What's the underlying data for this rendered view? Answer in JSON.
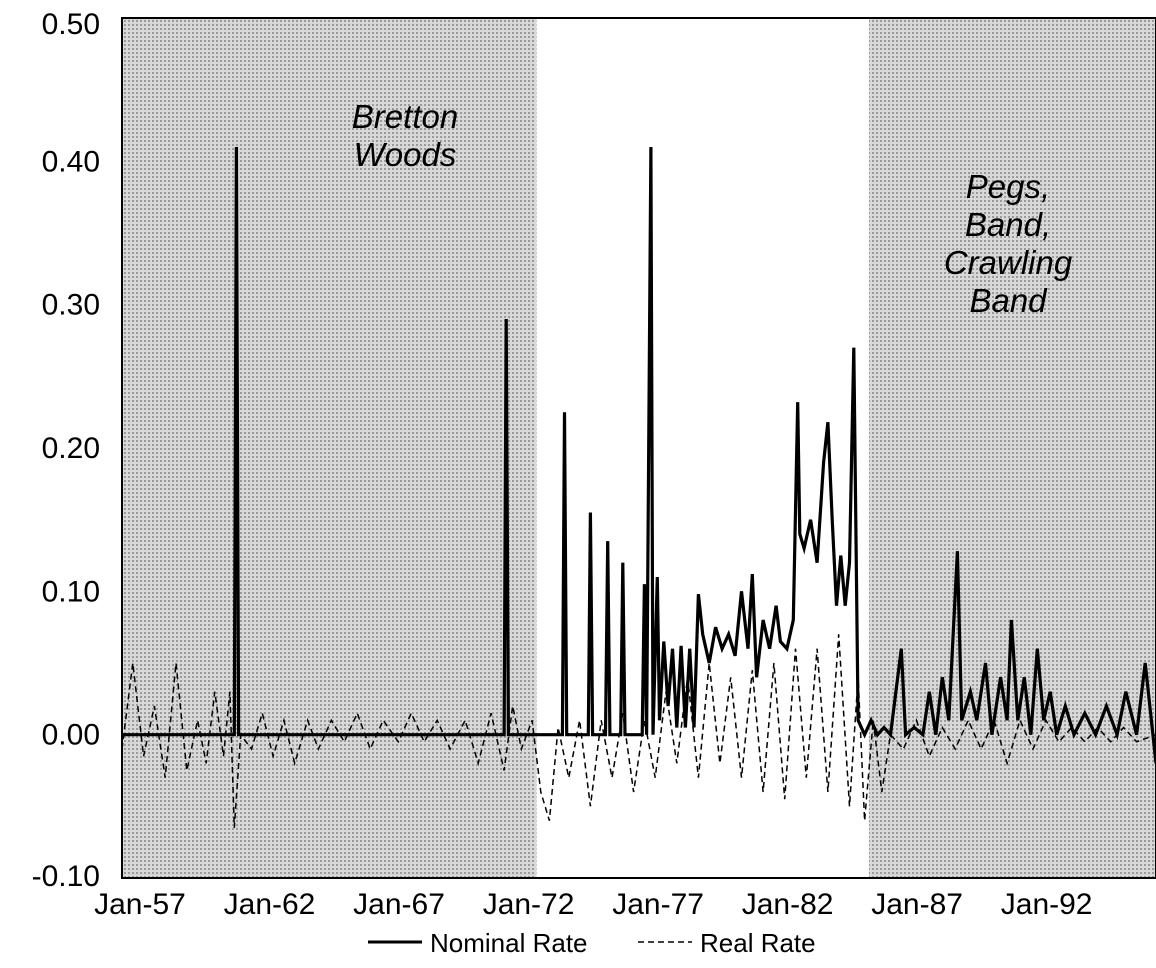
{
  "chart_data": {
    "type": "line",
    "title": "",
    "xlabel": "",
    "ylabel": "",
    "x_range": [
      "Jan-57",
      "Dec-96"
    ],
    "ylim": [
      -0.1,
      0.5
    ],
    "y_ticks": [
      "0.50",
      "0.40",
      "0.30",
      "0.20",
      "0.10",
      "0.00",
      "-0.10"
    ],
    "y_tick_values": [
      0.5,
      0.4,
      0.3,
      0.2,
      0.1,
      0.0,
      -0.1
    ],
    "x_ticks": [
      "Jan-57",
      "Jan-62",
      "Jan-67",
      "Jan-72",
      "Jan-77",
      "Jan-82",
      "Jan-87",
      "Jan-92"
    ],
    "x_tick_years": [
      1957,
      1962,
      1967,
      1972,
      1977,
      1982,
      1987,
      1992
    ],
    "grid": false,
    "legend_position": "bottom-center",
    "shaded_color": "#c8c8c8",
    "regimes": [
      {
        "label": [
          "Bretton",
          "Woods"
        ],
        "start": "Jan-57",
        "end": "Dec-72",
        "shaded": true
      },
      {
        "label": [],
        "start": "Jan-73",
        "end": "Oct-85",
        "shaded": false
      },
      {
        "label": [
          "Pegs,",
          "Band,",
          "Crawling",
          "Band"
        ],
        "start": "Nov-85",
        "end": "Dec-96",
        "shaded": true
      }
    ],
    "series": [
      {
        "name": "Nominal Rate",
        "style": "solid",
        "color": "#000000",
        "points": [
          [
            "1957-01",
            0.0
          ],
          [
            "1961-05",
            0.0
          ],
          [
            "1961-06",
            0.41
          ],
          [
            "1961-07",
            0.0
          ],
          [
            "1971-10",
            0.0
          ],
          [
            "1971-11",
            0.29
          ],
          [
            "1971-12",
            0.0
          ],
          [
            "1974-01",
            0.0
          ],
          [
            "1974-02",
            0.225
          ],
          [
            "1974-03",
            0.0
          ],
          [
            "1975-01",
            0.0
          ],
          [
            "1975-02",
            0.155
          ],
          [
            "1975-03",
            0.0
          ],
          [
            "1975-09",
            0.0
          ],
          [
            "1975-10",
            0.135
          ],
          [
            "1975-11",
            0.0
          ],
          [
            "1976-04",
            0.0
          ],
          [
            "1976-05",
            0.12
          ],
          [
            "1976-06",
            0.0
          ],
          [
            "1977-02",
            0.0
          ],
          [
            "1977-03",
            0.105
          ],
          [
            "1977-04",
            0.0
          ],
          [
            "1977-06",
            0.41
          ],
          [
            "1977-07",
            0.0
          ],
          [
            "1977-09",
            0.11
          ],
          [
            "1977-10",
            0.01
          ],
          [
            "1977-12",
            0.065
          ],
          [
            "1978-02",
            0.02
          ],
          [
            "1978-04",
            0.06
          ],
          [
            "1978-06",
            0.005
          ],
          [
            "1978-08",
            0.062
          ],
          [
            "1978-10",
            0.005
          ],
          [
            "1978-12",
            0.06
          ],
          [
            "1979-02",
            0.005
          ],
          [
            "1979-04",
            0.098
          ],
          [
            "1979-06",
            0.07
          ],
          [
            "1979-09",
            0.05
          ],
          [
            "1979-12",
            0.075
          ],
          [
            "1980-03",
            0.06
          ],
          [
            "1980-06",
            0.07
          ],
          [
            "1980-09",
            0.055
          ],
          [
            "1980-12",
            0.1
          ],
          [
            "1981-03",
            0.06
          ],
          [
            "1981-05",
            0.112
          ],
          [
            "1981-07",
            0.04
          ],
          [
            "1981-10",
            0.08
          ],
          [
            "1982-01",
            0.06
          ],
          [
            "1982-04",
            0.09
          ],
          [
            "1982-06",
            0.065
          ],
          [
            "1982-09",
            0.06
          ],
          [
            "1982-12",
            0.08
          ],
          [
            "1983-02",
            0.232
          ],
          [
            "1983-03",
            0.14
          ],
          [
            "1983-05",
            0.13
          ],
          [
            "1983-08",
            0.15
          ],
          [
            "1983-11",
            0.12
          ],
          [
            "1984-02",
            0.19
          ],
          [
            "1984-04",
            0.218
          ],
          [
            "1984-06",
            0.15
          ],
          [
            "1984-08",
            0.09
          ],
          [
            "1984-10",
            0.125
          ],
          [
            "1984-12",
            0.09
          ],
          [
            "1985-02",
            0.12
          ],
          [
            "1985-04",
            0.27
          ],
          [
            "1985-06",
            0.01
          ],
          [
            "1985-09",
            0.0
          ],
          [
            "1985-12",
            0.01
          ],
          [
            "1986-03",
            0.0
          ],
          [
            "1986-06",
            0.005
          ],
          [
            "1986-09",
            0.0
          ],
          [
            "1987-02",
            0.06
          ],
          [
            "1987-04",
            0.0
          ],
          [
            "1987-08",
            0.005
          ],
          [
            "1987-12",
            0.0
          ],
          [
            "1988-03",
            0.03
          ],
          [
            "1988-06",
            0.0
          ],
          [
            "1988-09",
            0.04
          ],
          [
            "1988-12",
            0.01
          ],
          [
            "1989-04",
            0.128
          ],
          [
            "1989-06",
            0.01
          ],
          [
            "1989-10",
            0.03
          ],
          [
            "1990-01",
            0.01
          ],
          [
            "1990-05",
            0.05
          ],
          [
            "1990-08",
            0.0
          ],
          [
            "1990-12",
            0.04
          ],
          [
            "1991-03",
            0.01
          ],
          [
            "1991-05",
            0.08
          ],
          [
            "1991-08",
            0.01
          ],
          [
            "1991-11",
            0.04
          ],
          [
            "1992-02",
            0.0
          ],
          [
            "1992-05",
            0.06
          ],
          [
            "1992-08",
            0.01
          ],
          [
            "1992-11",
            0.03
          ],
          [
            "1993-02",
            0.0
          ],
          [
            "1993-06",
            0.02
          ],
          [
            "1993-10",
            0.0
          ],
          [
            "1994-03",
            0.015
          ],
          [
            "1994-08",
            0.0
          ],
          [
            "1995-01",
            0.02
          ],
          [
            "1995-06",
            0.0
          ],
          [
            "1995-10",
            0.03
          ],
          [
            "1996-03",
            0.0
          ],
          [
            "1996-07",
            0.05
          ],
          [
            "1996-12",
            -0.02
          ]
        ]
      },
      {
        "name": "Real Rate",
        "style": "dashed",
        "color": "#000000",
        "points": [
          [
            "1957-01",
            -0.01
          ],
          [
            "1957-06",
            0.05
          ],
          [
            "1957-11",
            -0.015
          ],
          [
            "1958-04",
            0.02
          ],
          [
            "1958-09",
            -0.03
          ],
          [
            "1959-02",
            0.05
          ],
          [
            "1959-07",
            -0.025
          ],
          [
            "1959-12",
            0.01
          ],
          [
            "1960-04",
            -0.02
          ],
          [
            "1960-08",
            0.03
          ],
          [
            "1960-12",
            -0.015
          ],
          [
            "1961-03",
            0.03
          ],
          [
            "1961-05",
            -0.065
          ],
          [
            "1961-08",
            0.0
          ],
          [
            "1962-01",
            -0.01
          ],
          [
            "1962-06",
            0.015
          ],
          [
            "1962-11",
            -0.015
          ],
          [
            "1963-04",
            0.01
          ],
          [
            "1963-09",
            -0.02
          ],
          [
            "1964-03",
            0.01
          ],
          [
            "1964-08",
            -0.01
          ],
          [
            "1965-02",
            0.01
          ],
          [
            "1965-08",
            -0.005
          ],
          [
            "1966-02",
            0.015
          ],
          [
            "1966-08",
            -0.01
          ],
          [
            "1967-02",
            0.01
          ],
          [
            "1967-09",
            -0.005
          ],
          [
            "1968-03",
            0.015
          ],
          [
            "1968-09",
            -0.005
          ],
          [
            "1969-03",
            0.01
          ],
          [
            "1969-09",
            -0.01
          ],
          [
            "1970-04",
            0.01
          ],
          [
            "1970-10",
            -0.02
          ],
          [
            "1971-04",
            0.015
          ],
          [
            "1971-10",
            -0.025
          ],
          [
            "1972-02",
            0.02
          ],
          [
            "1972-06",
            -0.01
          ],
          [
            "1972-11",
            0.01
          ],
          [
            "1973-03",
            -0.04
          ],
          [
            "1973-07",
            -0.06
          ],
          [
            "1973-11",
            0.005
          ],
          [
            "1974-04",
            -0.03
          ],
          [
            "1974-09",
            0.01
          ],
          [
            "1975-02",
            -0.05
          ],
          [
            "1975-07",
            0.01
          ],
          [
            "1975-12",
            -0.03
          ],
          [
            "1976-05",
            0.015
          ],
          [
            "1976-10",
            -0.04
          ],
          [
            "1977-03",
            0.01
          ],
          [
            "1977-08",
            -0.03
          ],
          [
            "1978-01",
            0.03
          ],
          [
            "1978-06",
            -0.02
          ],
          [
            "1978-11",
            0.04
          ],
          [
            "1979-04",
            -0.03
          ],
          [
            "1979-09",
            0.05
          ],
          [
            "1980-02",
            -0.02
          ],
          [
            "1980-07",
            0.04
          ],
          [
            "1980-12",
            -0.03
          ],
          [
            "1981-05",
            0.045
          ],
          [
            "1981-10",
            -0.04
          ],
          [
            "1982-03",
            0.05
          ],
          [
            "1982-08",
            -0.045
          ],
          [
            "1983-01",
            0.06
          ],
          [
            "1983-06",
            -0.03
          ],
          [
            "1983-11",
            0.06
          ],
          [
            "1984-04",
            -0.04
          ],
          [
            "1984-09",
            0.07
          ],
          [
            "1985-02",
            -0.05
          ],
          [
            "1985-06",
            0.04
          ],
          [
            "1985-09",
            -0.06
          ],
          [
            "1986-01",
            0.01
          ],
          [
            "1986-05",
            -0.04
          ],
          [
            "1986-09",
            0.0
          ],
          [
            "1987-03",
            -0.01
          ],
          [
            "1987-09",
            0.01
          ],
          [
            "1988-03",
            -0.015
          ],
          [
            "1988-09",
            0.005
          ],
          [
            "1989-03",
            -0.01
          ],
          [
            "1989-09",
            0.01
          ],
          [
            "1990-03",
            -0.01
          ],
          [
            "1990-09",
            0.01
          ],
          [
            "1991-03",
            -0.02
          ],
          [
            "1991-09",
            0.01
          ],
          [
            "1992-03",
            -0.01
          ],
          [
            "1992-09",
            0.01
          ],
          [
            "1993-03",
            -0.005
          ],
          [
            "1993-09",
            0.005
          ],
          [
            "1994-03",
            -0.005
          ],
          [
            "1994-09",
            0.005
          ],
          [
            "1995-03",
            -0.005
          ],
          [
            "1995-09",
            0.005
          ],
          [
            "1996-03",
            -0.005
          ],
          [
            "1996-12",
            0.0
          ]
        ]
      }
    ]
  }
}
